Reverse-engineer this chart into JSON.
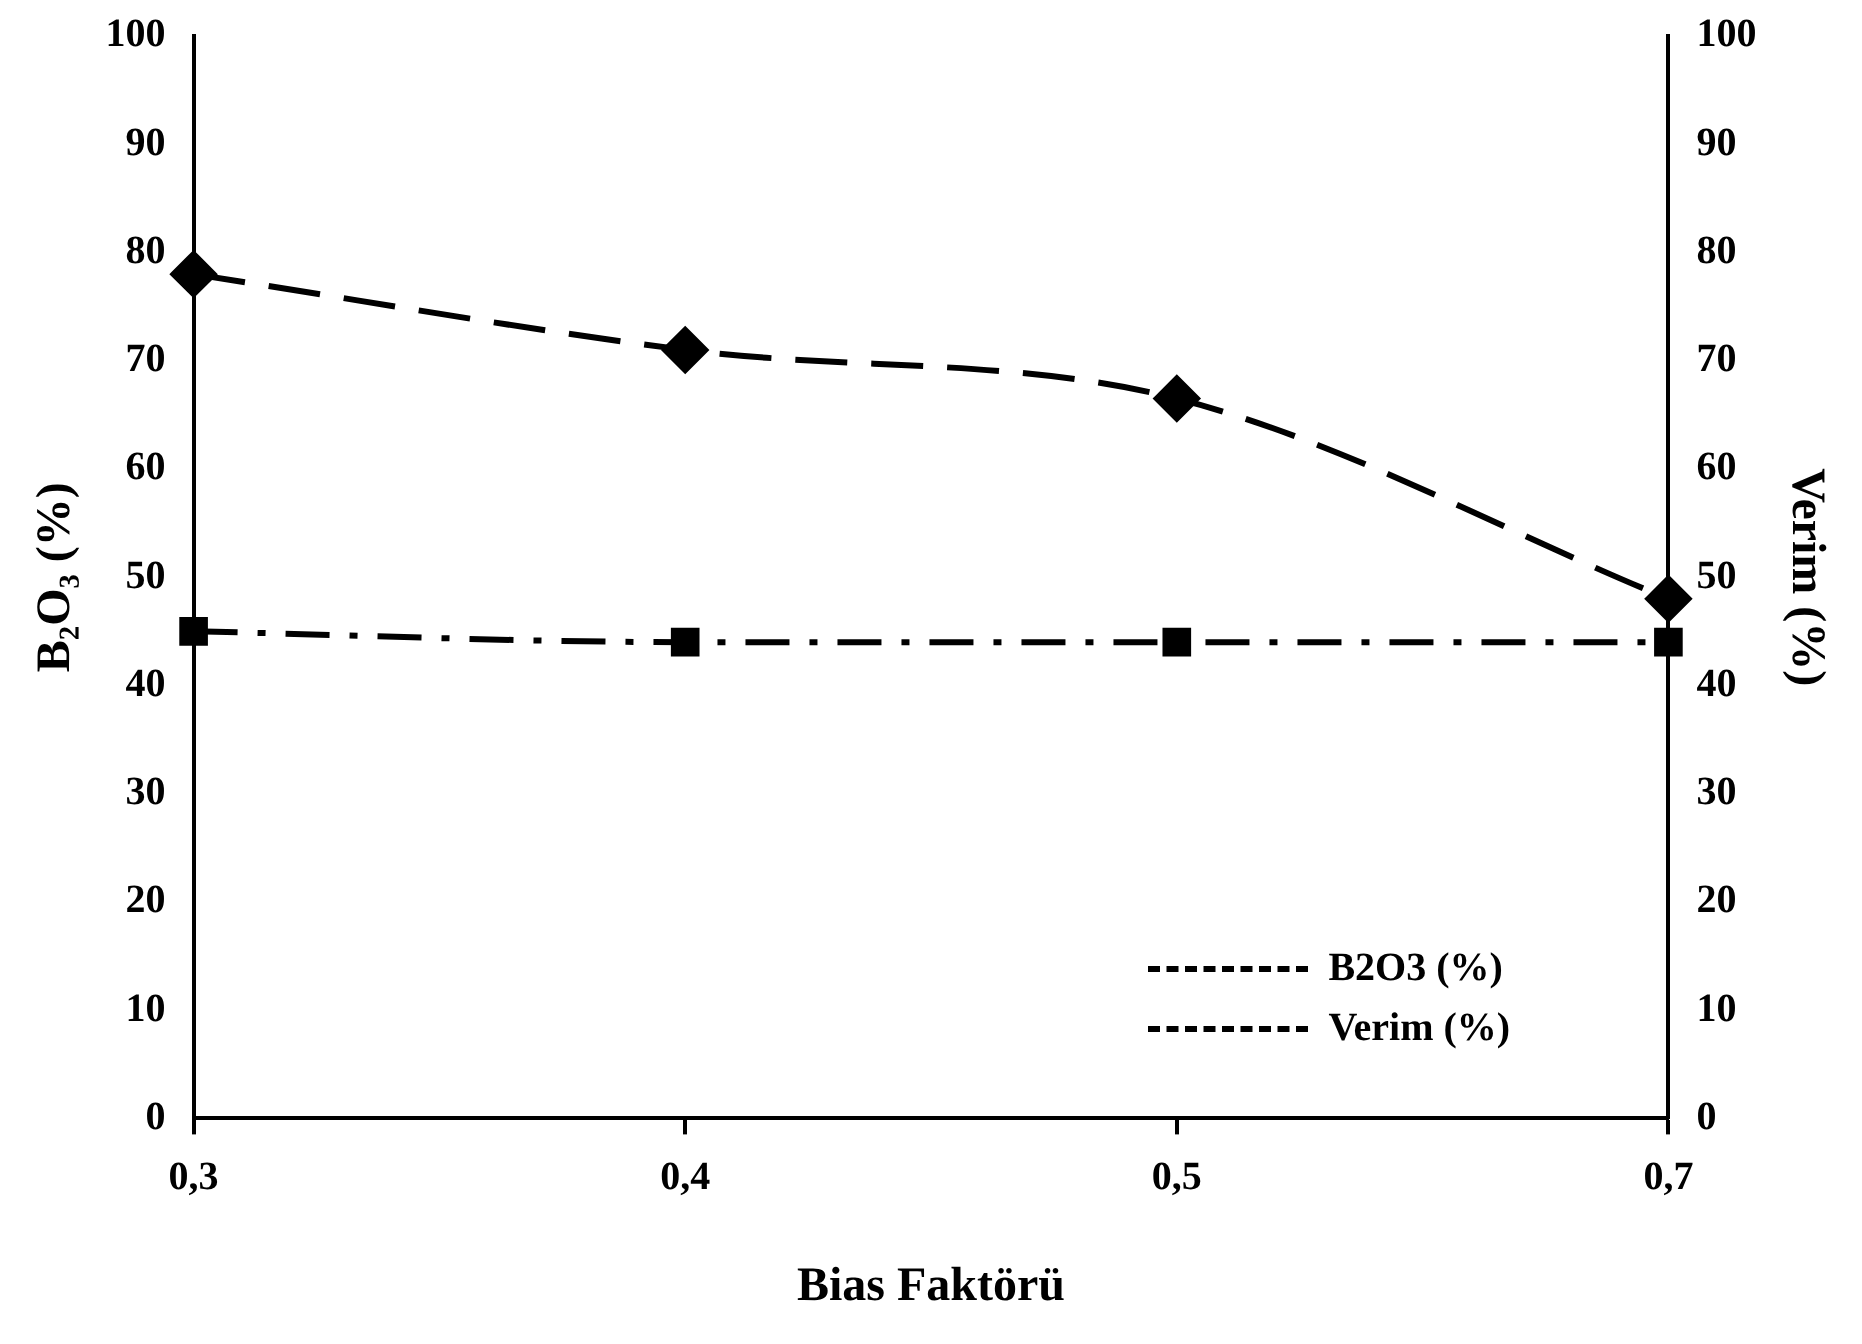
{
  "chart_data": {
    "type": "line",
    "xlabel": "Bias Faktörü",
    "ylabel": "B₂O₃ (%)",
    "y2label": "Verim (%)",
    "categories": [
      "0,3",
      "0,4",
      "0,5",
      "0,7"
    ],
    "series": [
      {
        "name": "B2O3 (%)",
        "color": "#000000",
        "values": [
          45,
          44,
          44,
          44
        ],
        "marker": "square",
        "line_style": "dashed"
      },
      {
        "name": "Verim (%)",
        "color": "#000000",
        "values": [
          78,
          71,
          66.5,
          48
        ],
        "marker": "diamond",
        "line_style": "dashed",
        "axis": "y2"
      }
    ],
    "ylim": [
      0,
      100
    ],
    "yticks": [
      0,
      10,
      20,
      30,
      40,
      50,
      60,
      70,
      80,
      90,
      100
    ],
    "y2lim": [
      0,
      100
    ],
    "y2ticks": [
      0,
      10,
      20,
      30,
      40,
      50,
      60,
      70,
      80,
      90,
      100
    ],
    "grid": false,
    "legend": "bottom right"
  }
}
